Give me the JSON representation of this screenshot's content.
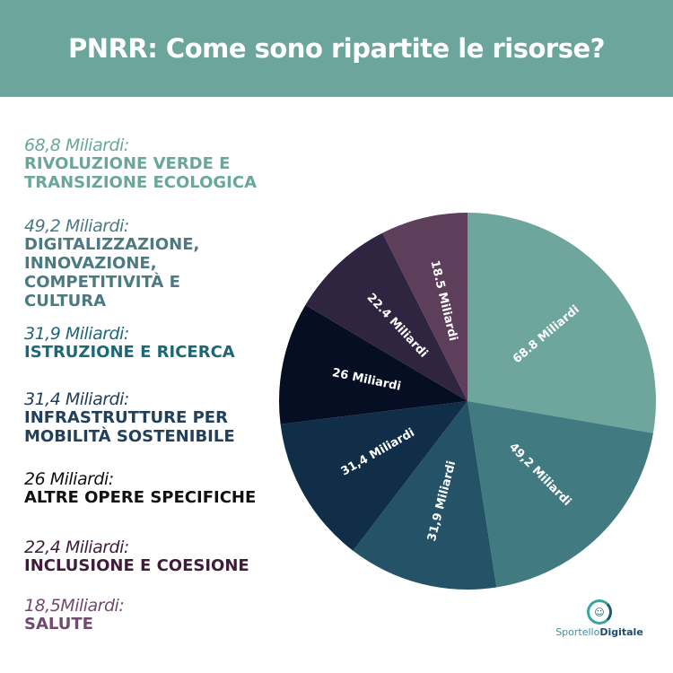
{
  "title": "PNRR: Come sono ripartite le risorse?",
  "chart_data": {
    "type": "pie",
    "title": "PNRR: Come sono ripartite le risorse?",
    "slices": [
      {
        "value": 68.8,
        "label": "68.8 Miliardi",
        "color": "#6ea69d"
      },
      {
        "value": 49.2,
        "label": "49,2 Miliardi",
        "color": "#427a81"
      },
      {
        "value": 31.9,
        "label": "31,9 Miliardi",
        "color": "#245267"
      },
      {
        "value": 31.4,
        "label": "31,4 Miliardi",
        "color": "#102e48"
      },
      {
        "value": 26,
        "label": "26 Miliardi",
        "color": "#050e22"
      },
      {
        "value": 22.4,
        "label": "22.4 Miliardi",
        "color": "#302541"
      },
      {
        "value": 18.5,
        "label": "18.5 Miliardi",
        "color": "#5d3f5b"
      }
    ]
  },
  "legend": [
    {
      "amount": "68,8 Miliardi:",
      "category": "RIVOLUZIONE VERDE E\nTRANSIZIONE ECOLOGICA",
      "color": "#69a79b"
    },
    {
      "amount": "49,2 Miliardi:",
      "category": "DIGITALIZZAZIONE,\nINNOVAZIONE,\nCOMPETITIVITÀ E\nCULTURA",
      "color": "#4b7a80"
    },
    {
      "amount": "31,9 Miliardi:",
      "category": "ISTRUZIONE E RICERCA",
      "color": "#1d6877"
    },
    {
      "amount": "31,4 Miliardi:",
      "category": "INFRASTRUTTURE PER\nMOBILITÀ SOSTENIBILE",
      "color": "#22405a"
    },
    {
      "amount": "26 Miliardi:",
      "category": "ALTRE OPERE SPECIFICHE",
      "color": "#111111"
    },
    {
      "amount": "22,4 Miliardi:",
      "category": "INCLUSIONE E COESIONE",
      "color": "#3f1d3a"
    },
    {
      "amount": "18,5Miliardi:",
      "category": "SALUTE",
      "color": "#724a6e"
    }
  ],
  "logo": {
    "text_light": "Sportello",
    "text_bold": "Digitale"
  }
}
